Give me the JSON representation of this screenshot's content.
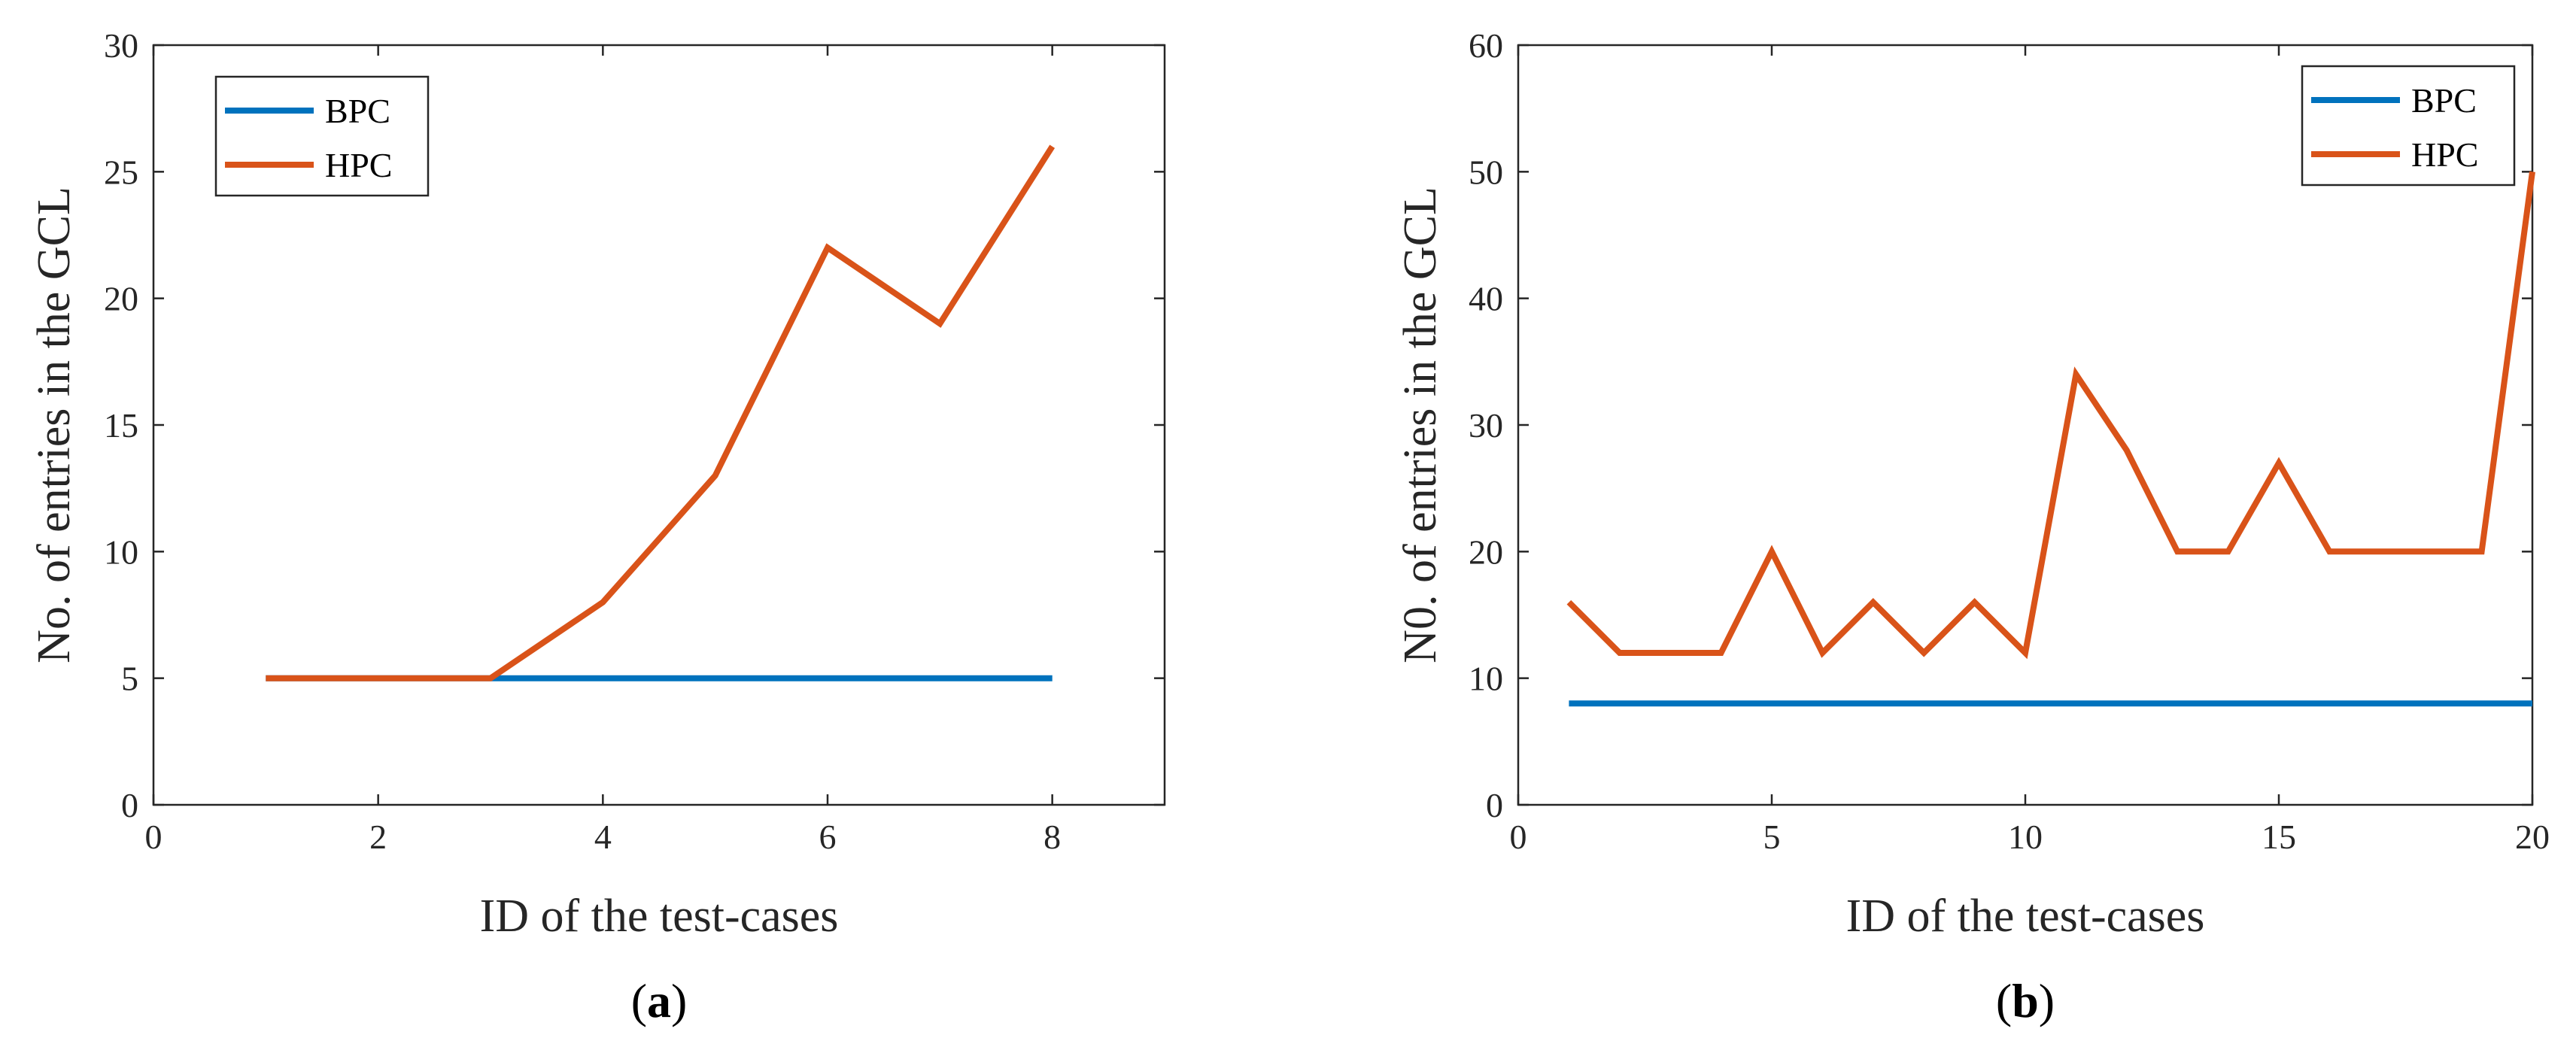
{
  "chart_data": [
    {
      "type": "line",
      "caption": "(a)",
      "caption_letter": "a",
      "title": "",
      "xlabel": "ID of the test-cases",
      "ylabel": "No. of entries in the GCL",
      "xlim": [
        0,
        9
      ],
      "ylim": [
        0,
        30
      ],
      "xticks": [
        0,
        2,
        4,
        6,
        8
      ],
      "yticks": [
        0,
        5,
        10,
        15,
        20,
        25,
        30
      ],
      "legend_position": "top-left",
      "series": [
        {
          "name": "BPC",
          "color": "#0072BD",
          "x": [
            1,
            2,
            3,
            4,
            5,
            6,
            7,
            8
          ],
          "y": [
            5,
            5,
            5,
            5,
            5,
            5,
            5,
            5
          ]
        },
        {
          "name": "HPC",
          "color": "#D95319",
          "x": [
            1,
            2,
            3,
            4,
            5,
            6,
            7,
            8
          ],
          "y": [
            5,
            5,
            5,
            8,
            13,
            22,
            19,
            26
          ]
        }
      ]
    },
    {
      "type": "line",
      "caption": "(b)",
      "caption_letter": "b",
      "title": "",
      "xlabel": "ID of the test-cases",
      "ylabel": "N0. of entries in the GCL",
      "xlim": [
        0,
        20
      ],
      "ylim": [
        0,
        60
      ],
      "xticks": [
        0,
        5,
        10,
        15,
        20
      ],
      "yticks": [
        0,
        10,
        20,
        30,
        40,
        50,
        60
      ],
      "legend_position": "top-right",
      "series": [
        {
          "name": "BPC",
          "color": "#0072BD",
          "x": [
            1,
            2,
            3,
            4,
            5,
            6,
            7,
            8,
            9,
            10,
            11,
            12,
            13,
            14,
            15,
            16,
            17,
            18,
            19,
            20
          ],
          "y": [
            8,
            8,
            8,
            8,
            8,
            8,
            8,
            8,
            8,
            8,
            8,
            8,
            8,
            8,
            8,
            8,
            8,
            8,
            8,
            8
          ]
        },
        {
          "name": "HPC",
          "color": "#D95319",
          "x": [
            1,
            2,
            3,
            4,
            5,
            6,
            7,
            8,
            9,
            10,
            11,
            12,
            13,
            14,
            15,
            16,
            17,
            18,
            19,
            20
          ],
          "y": [
            16,
            12,
            12,
            12,
            20,
            12,
            16,
            12,
            16,
            12,
            34,
            28,
            20,
            20,
            27,
            20,
            20,
            20,
            20,
            50
          ]
        }
      ]
    }
  ]
}
